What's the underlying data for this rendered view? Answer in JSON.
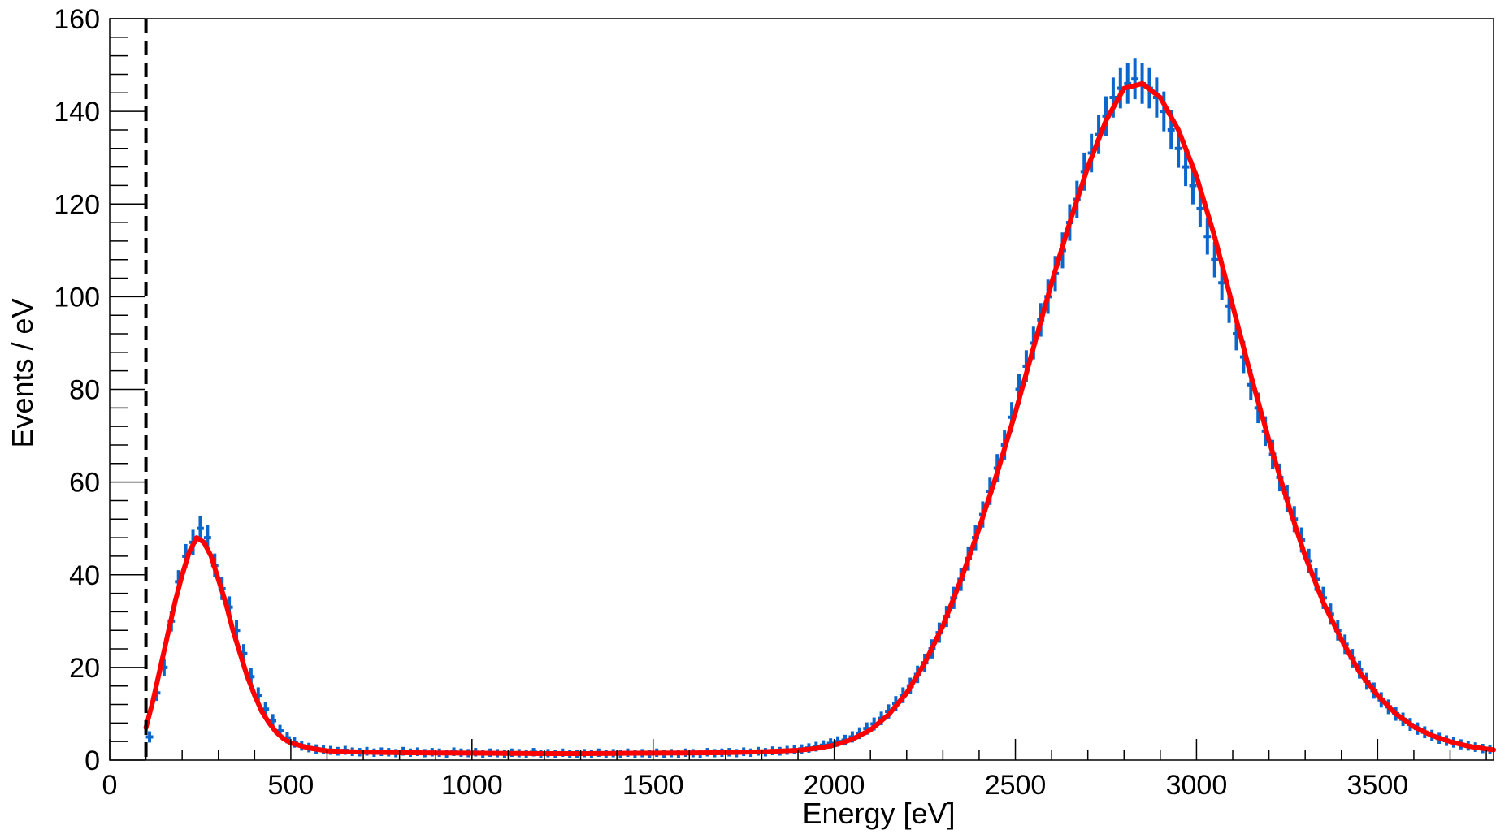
{
  "chart_data": {
    "type": "scatter",
    "xlabel": "Energy [eV]",
    "ylabel": "Events / eV",
    "xlim": [
      0,
      3820
    ],
    "ylim": [
      0,
      160
    ],
    "x_ticks": [
      0,
      500,
      1000,
      1500,
      2000,
      2500,
      3000,
      3500
    ],
    "y_ticks": [
      0,
      20,
      40,
      60,
      80,
      100,
      120,
      140,
      160
    ],
    "grid": false,
    "threshold_line": {
      "x": 100,
      "style": "dashed",
      "color": "#000000"
    },
    "colors": {
      "data": "#0b66cc",
      "fit": "#ff0000",
      "axis": "#000000"
    },
    "series": [
      {
        "kind": "histogram-with-errors",
        "bin_width": 20,
        "points": [
          [
            110,
            5
          ],
          [
            130,
            14.5
          ],
          [
            150,
            20
          ],
          [
            170,
            30
          ],
          [
            190,
            38.5
          ],
          [
            210,
            44
          ],
          [
            230,
            47
          ],
          [
            250,
            50
          ],
          [
            270,
            48
          ],
          [
            290,
            42
          ],
          [
            310,
            37
          ],
          [
            330,
            33
          ],
          [
            350,
            28
          ],
          [
            370,
            23
          ],
          [
            390,
            18
          ],
          [
            410,
            14
          ],
          [
            430,
            11
          ],
          [
            450,
            8.5
          ],
          [
            470,
            6.3
          ],
          [
            490,
            4.8
          ],
          [
            510,
            3.8
          ],
          [
            530,
            3.1
          ],
          [
            550,
            2.7
          ],
          [
            570,
            2.4
          ],
          [
            590,
            2.2
          ],
          [
            610,
            2.1
          ],
          [
            630,
            1.9
          ],
          [
            650,
            2.1
          ],
          [
            670,
            1.8
          ],
          [
            690,
            1.7
          ],
          [
            710,
            1.9
          ],
          [
            730,
            1.6
          ],
          [
            750,
            1.8
          ],
          [
            770,
            1.7
          ],
          [
            790,
            1.5
          ],
          [
            810,
            1.9
          ],
          [
            830,
            1.6
          ],
          [
            850,
            1.8
          ],
          [
            870,
            1.5
          ],
          [
            890,
            1.7
          ],
          [
            910,
            1.6
          ],
          [
            930,
            1.4
          ],
          [
            950,
            1.8
          ],
          [
            970,
            1.6
          ],
          [
            990,
            1.5
          ],
          [
            1010,
            1.7
          ],
          [
            1030,
            1.4
          ],
          [
            1050,
            1.6
          ],
          [
            1070,
            1.5
          ],
          [
            1090,
            1.3
          ],
          [
            1110,
            1.6
          ],
          [
            1130,
            1.5
          ],
          [
            1150,
            1.4
          ],
          [
            1170,
            1.7
          ],
          [
            1190,
            1.3
          ],
          [
            1210,
            1.5
          ],
          [
            1230,
            1.4
          ],
          [
            1250,
            1.6
          ],
          [
            1270,
            1.3
          ],
          [
            1290,
            1.4
          ],
          [
            1310,
            1.5
          ],
          [
            1330,
            1.3
          ],
          [
            1350,
            1.6
          ],
          [
            1370,
            1.4
          ],
          [
            1390,
            1.5
          ],
          [
            1410,
            1.3
          ],
          [
            1430,
            1.6
          ],
          [
            1450,
            1.4
          ],
          [
            1470,
            1.5
          ],
          [
            1490,
            1.3
          ],
          [
            1510,
            1.6
          ],
          [
            1530,
            1.4
          ],
          [
            1550,
            1.5
          ],
          [
            1570,
            1.4
          ],
          [
            1590,
            1.6
          ],
          [
            1610,
            1.5
          ],
          [
            1630,
            1.4
          ],
          [
            1650,
            1.7
          ],
          [
            1670,
            1.5
          ],
          [
            1690,
            1.6
          ],
          [
            1710,
            1.7
          ],
          [
            1730,
            1.5
          ],
          [
            1750,
            1.8
          ],
          [
            1770,
            1.6
          ],
          [
            1790,
            1.9
          ],
          [
            1810,
            1.7
          ],
          [
            1830,
            2.0
          ],
          [
            1850,
            1.9
          ],
          [
            1870,
            2.1
          ],
          [
            1890,
            2.2
          ],
          [
            1910,
            2.4
          ],
          [
            1930,
            2.6
          ],
          [
            1950,
            2.9
          ],
          [
            1970,
            3.2
          ],
          [
            1990,
            3.6
          ],
          [
            2010,
            4.0
          ],
          [
            2030,
            4.3
          ],
          [
            2050,
            5.0
          ],
          [
            2070,
            5.8
          ],
          [
            2090,
            6.8
          ],
          [
            2110,
            7.8
          ],
          [
            2130,
            9.0
          ],
          [
            2150,
            10.5
          ],
          [
            2170,
            12.2
          ],
          [
            2190,
            14.0
          ],
          [
            2210,
            16.0
          ],
          [
            2230,
            18.5
          ],
          [
            2250,
            21.0
          ],
          [
            2270,
            24.0
          ],
          [
            2290,
            27.5
          ],
          [
            2310,
            31.0
          ],
          [
            2330,
            35.0
          ],
          [
            2350,
            39.0
          ],
          [
            2370,
            43.5
          ],
          [
            2390,
            48.0
          ],
          [
            2410,
            53.0
          ],
          [
            2430,
            58.0
          ],
          [
            2450,
            63.0
          ],
          [
            2470,
            68.0
          ],
          [
            2490,
            74.0
          ],
          [
            2510,
            80.0
          ],
          [
            2530,
            85.0
          ],
          [
            2550,
            90.0
          ],
          [
            2570,
            95.0
          ],
          [
            2590,
            100.0
          ],
          [
            2610,
            105.0
          ],
          [
            2630,
            110.0
          ],
          [
            2650,
            116.0
          ],
          [
            2670,
            121.0
          ],
          [
            2690,
            127.0
          ],
          [
            2710,
            131.0
          ],
          [
            2730,
            135.0
          ],
          [
            2750,
            139.0
          ],
          [
            2770,
            143.0
          ],
          [
            2790,
            145.0
          ],
          [
            2810,
            146.0
          ],
          [
            2830,
            147.0
          ],
          [
            2850,
            146.0
          ],
          [
            2870,
            145.0
          ],
          [
            2890,
            143.0
          ],
          [
            2910,
            140.0
          ],
          [
            2930,
            136.0
          ],
          [
            2950,
            132.0
          ],
          [
            2970,
            128.0
          ],
          [
            2990,
            124.0
          ],
          [
            3010,
            119.0
          ],
          [
            3030,
            113.0
          ],
          [
            3050,
            108.0
          ],
          [
            3070,
            103.0
          ],
          [
            3090,
            98.0
          ],
          [
            3110,
            92.0
          ],
          [
            3130,
            87.0
          ],
          [
            3150,
            81.0
          ],
          [
            3170,
            76.0
          ],
          [
            3190,
            71.0
          ],
          [
            3210,
            66.0
          ],
          [
            3230,
            61.0
          ],
          [
            3250,
            56.5
          ],
          [
            3270,
            52.0
          ],
          [
            3290,
            47.5
          ],
          [
            3310,
            43.0
          ],
          [
            3330,
            39.0
          ],
          [
            3350,
            35.0
          ],
          [
            3370,
            31.5
          ],
          [
            3390,
            28.0
          ],
          [
            3410,
            25.0
          ],
          [
            3430,
            22.0
          ],
          [
            3450,
            19.5
          ],
          [
            3470,
            17.0
          ],
          [
            3490,
            15.0
          ],
          [
            3510,
            13.0
          ],
          [
            3530,
            11.5
          ],
          [
            3550,
            10.0
          ],
          [
            3570,
            8.8
          ],
          [
            3590,
            7.7
          ],
          [
            3610,
            6.8
          ],
          [
            3630,
            6.0
          ],
          [
            3650,
            5.3
          ],
          [
            3670,
            4.7
          ],
          [
            3690,
            4.2
          ],
          [
            3710,
            3.8
          ],
          [
            3730,
            3.4
          ],
          [
            3750,
            3.1
          ],
          [
            3770,
            2.8
          ],
          [
            3790,
            2.5
          ],
          [
            3810,
            2.3
          ]
        ]
      },
      {
        "kind": "fit-curve",
        "points": [
          [
            100,
            7
          ],
          [
            120,
            13
          ],
          [
            140,
            20
          ],
          [
            160,
            27
          ],
          [
            180,
            34
          ],
          [
            200,
            40
          ],
          [
            220,
            45
          ],
          [
            240,
            48
          ],
          [
            260,
            47
          ],
          [
            280,
            44
          ],
          [
            300,
            39
          ],
          [
            320,
            34
          ],
          [
            340,
            28
          ],
          [
            360,
            23
          ],
          [
            380,
            18
          ],
          [
            400,
            14
          ],
          [
            420,
            10.5
          ],
          [
            440,
            8
          ],
          [
            460,
            6
          ],
          [
            480,
            4.6
          ],
          [
            500,
            3.7
          ],
          [
            550,
            2.6
          ],
          [
            600,
            2.0
          ],
          [
            700,
            1.7
          ],
          [
            800,
            1.6
          ],
          [
            900,
            1.55
          ],
          [
            1000,
            1.5
          ],
          [
            1100,
            1.45
          ],
          [
            1200,
            1.4
          ],
          [
            1300,
            1.4
          ],
          [
            1400,
            1.45
          ],
          [
            1500,
            1.5
          ],
          [
            1600,
            1.55
          ],
          [
            1700,
            1.6
          ],
          [
            1800,
            1.8
          ],
          [
            1900,
            2.1
          ],
          [
            1950,
            2.5
          ],
          [
            2000,
            3.2
          ],
          [
            2050,
            4.5
          ],
          [
            2100,
            6.5
          ],
          [
            2150,
            9.8
          ],
          [
            2200,
            14.5
          ],
          [
            2250,
            21
          ],
          [
            2300,
            29
          ],
          [
            2350,
            39
          ],
          [
            2400,
            50
          ],
          [
            2450,
            62
          ],
          [
            2500,
            75
          ],
          [
            2550,
            89
          ],
          [
            2600,
            103
          ],
          [
            2650,
            116
          ],
          [
            2700,
            128
          ],
          [
            2750,
            138
          ],
          [
            2800,
            145
          ],
          [
            2850,
            146
          ],
          [
            2900,
            143
          ],
          [
            2950,
            136
          ],
          [
            3000,
            126
          ],
          [
            3050,
            113
          ],
          [
            3100,
            98
          ],
          [
            3150,
            83
          ],
          [
            3200,
            69
          ],
          [
            3250,
            56
          ],
          [
            3300,
            44
          ],
          [
            3350,
            34
          ],
          [
            3400,
            26
          ],
          [
            3450,
            19
          ],
          [
            3500,
            14
          ],
          [
            3550,
            10
          ],
          [
            3600,
            7.2
          ],
          [
            3650,
            5.3
          ],
          [
            3700,
            4.0
          ],
          [
            3750,
            3.0
          ],
          [
            3800,
            2.4
          ],
          [
            3820,
            2.2
          ]
        ]
      }
    ]
  }
}
